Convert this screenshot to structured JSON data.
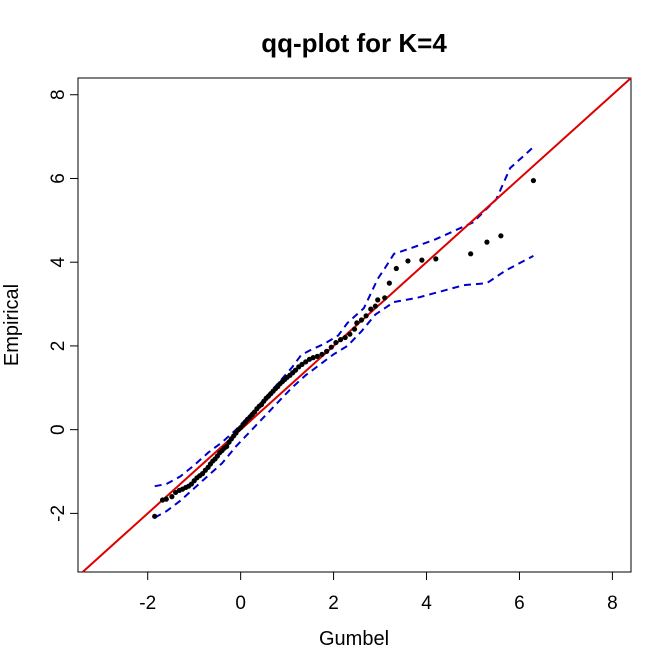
{
  "chart_data": {
    "type": "scatter",
    "title": "qq-plot for K=4",
    "xlabel": "Gumbel",
    "ylabel": "Empirical",
    "xlim": [
      -3.5,
      8.4
    ],
    "ylim": [
      -3.4,
      8.4
    ],
    "x_ticks": [
      -2,
      0,
      2,
      4,
      6,
      8
    ],
    "y_ticks": [
      -2,
      0,
      2,
      4,
      6,
      8
    ],
    "x_tick_labels": [
      "-2",
      "0",
      "2",
      "4",
      "6",
      "8"
    ],
    "y_tick_labels": [
      "-2",
      "0",
      "2",
      "4",
      "6",
      "8"
    ],
    "grid": false,
    "reference_line": {
      "slope": 1,
      "intercept": 0,
      "color": "#dd0000"
    },
    "points_color": "#000000",
    "band_color": "#0000cc",
    "points": [
      [
        -1.85,
        -2.07
      ],
      [
        -1.68,
        -1.68
      ],
      [
        -1.6,
        -1.66
      ],
      [
        -1.48,
        -1.6
      ],
      [
        -1.4,
        -1.5
      ],
      [
        -1.32,
        -1.45
      ],
      [
        -1.25,
        -1.42
      ],
      [
        -1.18,
        -1.38
      ],
      [
        -1.12,
        -1.35
      ],
      [
        -1.06,
        -1.3
      ],
      [
        -1.0,
        -1.22
      ],
      [
        -0.94,
        -1.15
      ],
      [
        -0.88,
        -1.1
      ],
      [
        -0.82,
        -1.05
      ],
      [
        -0.76,
        -0.97
      ],
      [
        -0.7,
        -0.9
      ],
      [
        -0.65,
        -0.82
      ],
      [
        -0.6,
        -0.75
      ],
      [
        -0.55,
        -0.7
      ],
      [
        -0.5,
        -0.63
      ],
      [
        -0.45,
        -0.55
      ],
      [
        -0.4,
        -0.5
      ],
      [
        -0.35,
        -0.44
      ],
      [
        -0.3,
        -0.4
      ],
      [
        -0.25,
        -0.3
      ],
      [
        -0.2,
        -0.22
      ],
      [
        -0.15,
        -0.15
      ],
      [
        -0.1,
        -0.08
      ],
      [
        -0.05,
        0.0
      ],
      [
        0.0,
        0.05
      ],
      [
        0.05,
        0.12
      ],
      [
        0.1,
        0.18
      ],
      [
        0.15,
        0.25
      ],
      [
        0.2,
        0.3
      ],
      [
        0.25,
        0.36
      ],
      [
        0.3,
        0.42
      ],
      [
        0.35,
        0.5
      ],
      [
        0.4,
        0.56
      ],
      [
        0.45,
        0.6
      ],
      [
        0.5,
        0.68
      ],
      [
        0.55,
        0.75
      ],
      [
        0.6,
        0.8
      ],
      [
        0.65,
        0.86
      ],
      [
        0.7,
        0.92
      ],
      [
        0.75,
        0.98
      ],
      [
        0.8,
        1.03
      ],
      [
        0.85,
        1.1
      ],
      [
        0.9,
        1.15
      ],
      [
        0.95,
        1.2
      ],
      [
        1.0,
        1.25
      ],
      [
        1.06,
        1.3
      ],
      [
        1.12,
        1.36
      ],
      [
        1.18,
        1.42
      ],
      [
        1.25,
        1.5
      ],
      [
        1.32,
        1.56
      ],
      [
        1.4,
        1.62
      ],
      [
        1.48,
        1.68
      ],
      [
        1.56,
        1.72
      ],
      [
        1.65,
        1.75
      ],
      [
        1.75,
        1.8
      ],
      [
        1.85,
        1.87
      ],
      [
        1.95,
        1.97
      ],
      [
        2.05,
        2.08
      ],
      [
        2.15,
        2.15
      ],
      [
        2.25,
        2.2
      ],
      [
        2.35,
        2.28
      ],
      [
        2.45,
        2.4
      ],
      [
        2.5,
        2.55
      ],
      [
        2.6,
        2.62
      ],
      [
        2.7,
        2.72
      ],
      [
        2.8,
        2.88
      ],
      [
        2.9,
        2.95
      ],
      [
        2.95,
        3.1
      ],
      [
        3.1,
        3.15
      ],
      [
        3.2,
        3.5
      ],
      [
        3.35,
        3.85
      ],
      [
        3.6,
        4.03
      ],
      [
        3.9,
        4.05
      ],
      [
        4.2,
        4.08
      ],
      [
        4.95,
        4.2
      ],
      [
        5.3,
        4.48
      ],
      [
        5.6,
        4.63
      ],
      [
        6.3,
        5.95
      ]
    ],
    "band_upper": [
      [
        -1.85,
        -1.35
      ],
      [
        -1.6,
        -1.3
      ],
      [
        -1.3,
        -1.12
      ],
      [
        -1.0,
        -0.85
      ],
      [
        -0.7,
        -0.55
      ],
      [
        -0.4,
        -0.3
      ],
      [
        -0.1,
        -0.0
      ],
      [
        0.2,
        0.35
      ],
      [
        0.5,
        0.72
      ],
      [
        0.8,
        1.1
      ],
      [
        1.1,
        1.48
      ],
      [
        1.3,
        1.78
      ],
      [
        1.5,
        1.9
      ],
      [
        1.8,
        2.05
      ],
      [
        2.1,
        2.25
      ],
      [
        2.3,
        2.55
      ],
      [
        2.5,
        2.75
      ],
      [
        2.65,
        2.9
      ],
      [
        2.8,
        3.25
      ],
      [
        2.95,
        3.6
      ],
      [
        3.1,
        3.85
      ],
      [
        3.3,
        4.2
      ],
      [
        3.7,
        4.35
      ],
      [
        4.2,
        4.55
      ],
      [
        4.6,
        4.75
      ],
      [
        5.0,
        4.95
      ],
      [
        5.5,
        5.5
      ],
      [
        5.8,
        6.25
      ],
      [
        6.3,
        6.75
      ]
    ],
    "band_lower": [
      [
        -1.85,
        -2.1
      ],
      [
        -1.6,
        -1.95
      ],
      [
        -1.3,
        -1.7
      ],
      [
        -1.0,
        -1.4
      ],
      [
        -0.7,
        -1.1
      ],
      [
        -0.4,
        -0.8
      ],
      [
        -0.1,
        -0.4
      ],
      [
        0.2,
        -0.05
      ],
      [
        0.5,
        0.3
      ],
      [
        0.8,
        0.65
      ],
      [
        1.1,
        1.0
      ],
      [
        1.4,
        1.3
      ],
      [
        1.7,
        1.55
      ],
      [
        2.0,
        1.8
      ],
      [
        2.3,
        2.0
      ],
      [
        2.6,
        2.35
      ],
      [
        2.9,
        2.75
      ],
      [
        3.3,
        3.05
      ],
      [
        3.8,
        3.15
      ],
      [
        4.3,
        3.3
      ],
      [
        4.8,
        3.45
      ],
      [
        5.3,
        3.5
      ],
      [
        5.7,
        3.8
      ],
      [
        6.3,
        4.15
      ]
    ]
  }
}
